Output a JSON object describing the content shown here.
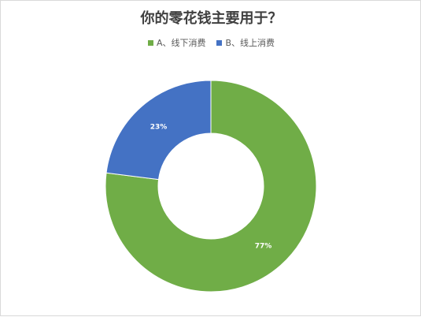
{
  "chart_data": {
    "type": "pie",
    "style": "donut",
    "title": "你的零花钱主要用于？",
    "legend_position": "top",
    "series": [
      {
        "name": "A、线下消费",
        "value": 77,
        "label": "77%",
        "color": "#70ad47"
      },
      {
        "name": "B、线上消费",
        "value": 23,
        "label": "23%",
        "color": "#4472c4"
      }
    ]
  }
}
